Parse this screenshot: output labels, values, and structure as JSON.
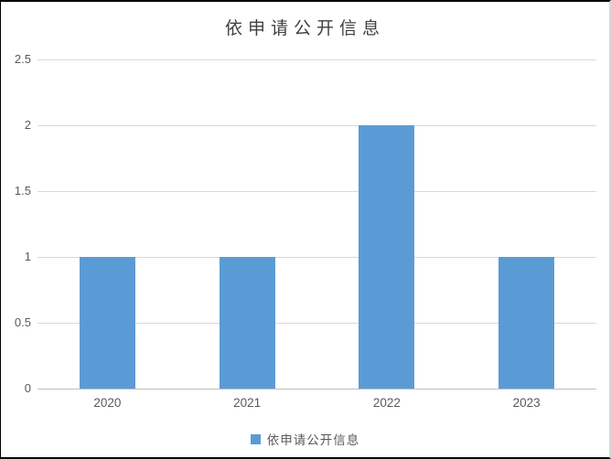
{
  "chart_data": {
    "type": "bar",
    "title": "依申请公开信息",
    "categories": [
      "2020",
      "2021",
      "2022",
      "2023"
    ],
    "series": [
      {
        "name": "依申请公开信息",
        "values": [
          1,
          1,
          2,
          1
        ]
      }
    ],
    "ylim": [
      0,
      2.5
    ],
    "yticks": [
      0,
      0.5,
      1,
      1.5,
      2,
      2.5
    ],
    "xlabel": "",
    "ylabel": "",
    "grid": true,
    "legend_position": "bottom",
    "bar_color": "#5b9bd5",
    "gridline_color": "#d9d9d9",
    "baseline_color": "#bfbfbf",
    "tick_color": "#595959",
    "title_color": "#404040"
  }
}
